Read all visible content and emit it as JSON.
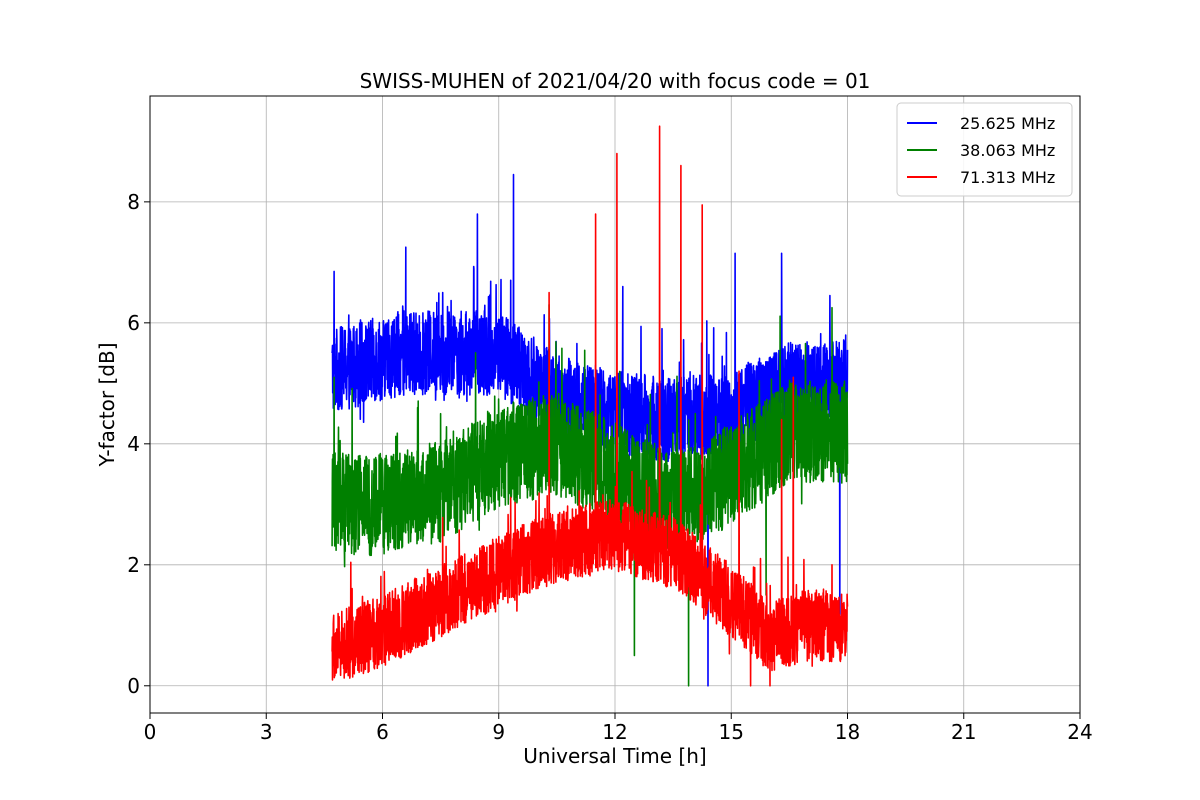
{
  "chart_data": {
    "type": "line",
    "title": "SWISS-MUHEN of 2021/04/20 with focus code = 01",
    "xlabel": "Universal Time [h]",
    "ylabel": "Y-factor [dB]",
    "xlim": [
      0,
      24
    ],
    "ylim": [
      -0.45,
      9.75
    ],
    "xticks": [
      0,
      3,
      6,
      9,
      12,
      15,
      18,
      21,
      24
    ],
    "yticks": [
      0,
      2,
      4,
      6,
      8
    ],
    "grid": true,
    "legend_position": "top-right",
    "series": [
      {
        "name": "25.625 MHz",
        "color": "#0000ff",
        "x_start": 4.7,
        "x_end": 18.0,
        "baseline": [
          [
            4.7,
            5.2
          ],
          [
            6.5,
            5.5
          ],
          [
            9.0,
            5.5
          ],
          [
            10.5,
            4.8
          ],
          [
            12.0,
            4.5
          ],
          [
            13.5,
            4.4
          ],
          [
            15.0,
            4.5
          ],
          [
            16.5,
            5.0
          ],
          [
            18.0,
            5.0
          ]
        ],
        "spread": 0.7,
        "spikes": [
          [
            4.75,
            6.85
          ],
          [
            6.6,
            7.25
          ],
          [
            8.45,
            7.8
          ],
          [
            9.38,
            8.45
          ],
          [
            12.2,
            6.6
          ],
          [
            14.4,
            0.0
          ],
          [
            15.1,
            7.15
          ],
          [
            16.3,
            7.15
          ],
          [
            17.8,
            1.0
          ]
        ]
      },
      {
        "name": "38.063 MHz",
        "color": "#008000",
        "x_start": 4.7,
        "x_end": 18.0,
        "baseline": [
          [
            4.7,
            3.0
          ],
          [
            6.0,
            3.0
          ],
          [
            7.5,
            3.2
          ],
          [
            9.0,
            3.8
          ],
          [
            10.5,
            4.0
          ],
          [
            12.0,
            3.5
          ],
          [
            13.5,
            3.0
          ],
          [
            15.0,
            3.5
          ],
          [
            16.5,
            4.2
          ],
          [
            18.0,
            4.2
          ]
        ],
        "spread": 0.85,
        "spikes": [
          [
            4.75,
            5.1
          ],
          [
            10.3,
            6.3
          ],
          [
            12.5,
            0.5
          ],
          [
            13.9,
            0.0
          ],
          [
            17.6,
            6.25
          ],
          [
            15.9,
            1.5
          ]
        ]
      },
      {
        "name": "71.313 MHz",
        "color": "#ff0000",
        "x_start": 4.7,
        "x_end": 18.0,
        "baseline": [
          [
            4.7,
            0.6
          ],
          [
            6.0,
            0.9
          ],
          [
            7.5,
            1.4
          ],
          [
            9.0,
            1.9
          ],
          [
            10.5,
            2.3
          ],
          [
            12.0,
            2.5
          ],
          [
            13.5,
            2.2
          ],
          [
            15.0,
            1.4
          ],
          [
            16.0,
            0.8
          ],
          [
            17.0,
            1.0
          ],
          [
            18.0,
            1.0
          ]
        ],
        "spread": 0.6,
        "spikes": [
          [
            10.3,
            6.5
          ],
          [
            11.5,
            7.8
          ],
          [
            12.05,
            8.8
          ],
          [
            13.15,
            9.25
          ],
          [
            13.7,
            8.6
          ],
          [
            14.25,
            7.95
          ],
          [
            15.2,
            5.2
          ],
          [
            16.3,
            4.4
          ],
          [
            16.6,
            5.1
          ],
          [
            17.6,
            2.0
          ],
          [
            15.5,
            0.0
          ],
          [
            16.0,
            0.0
          ]
        ]
      }
    ]
  }
}
